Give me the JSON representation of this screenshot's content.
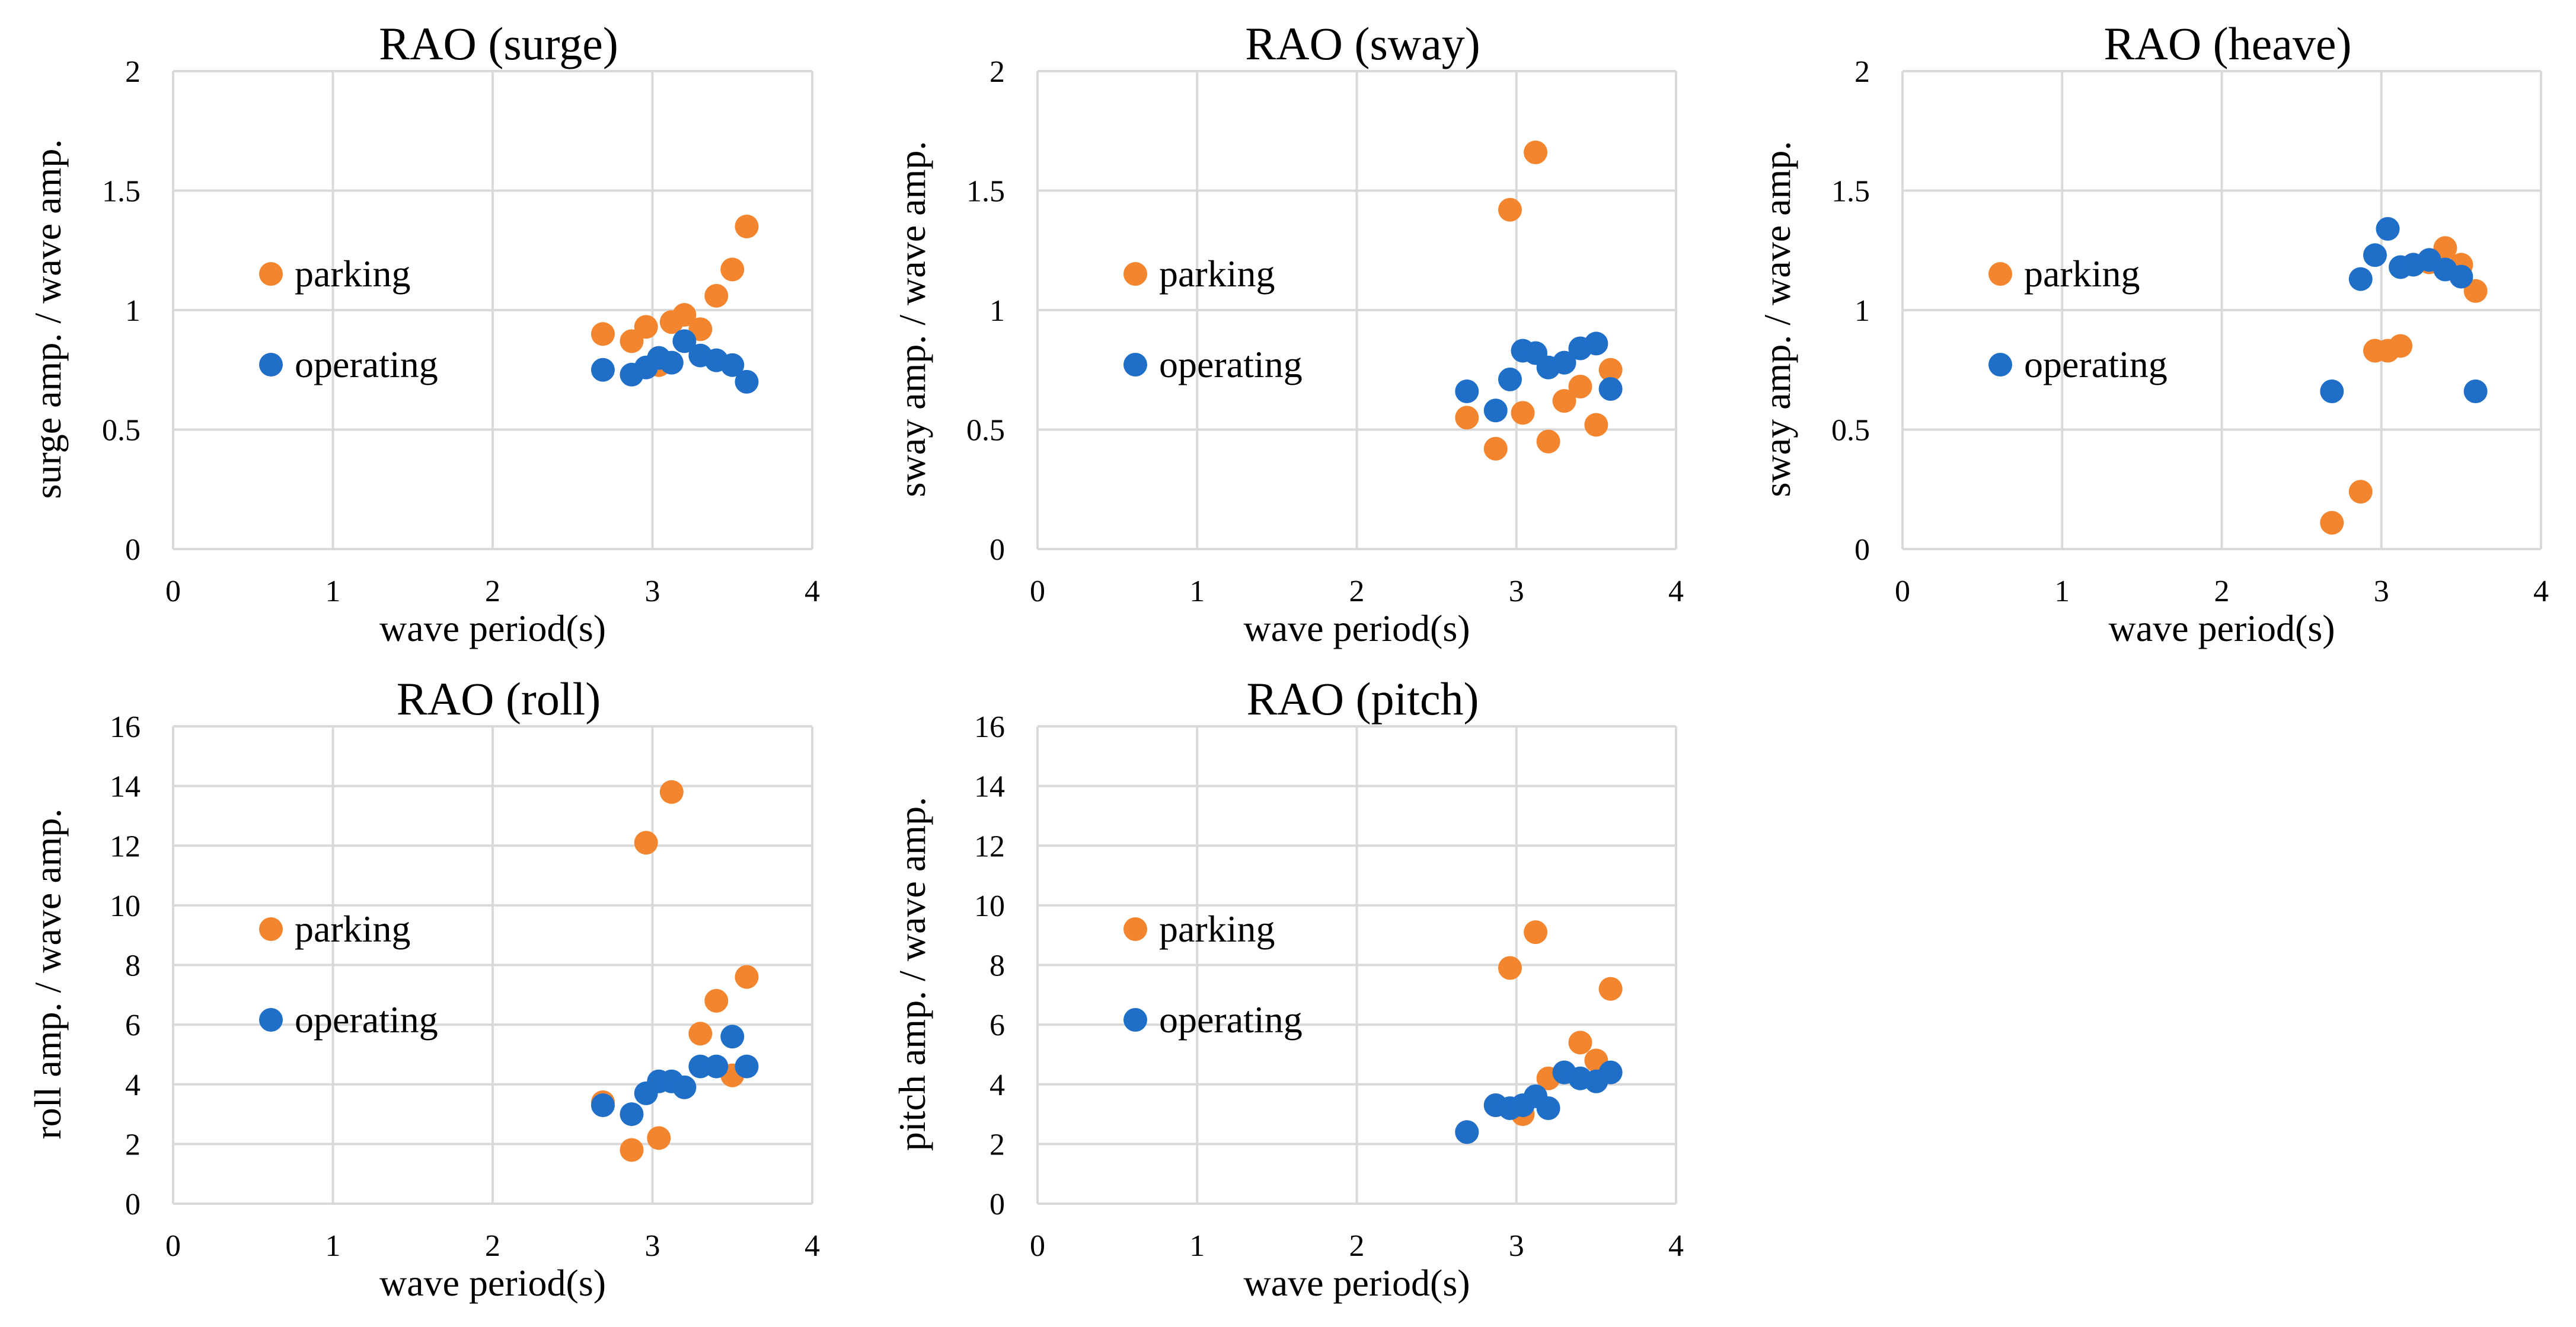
{
  "colors": {
    "parking": "#f4852f",
    "operating": "#1f6fc9",
    "grid": "#d9d9d9"
  },
  "chart_data": [
    {
      "type": "scatter",
      "title": "RAO (surge)",
      "xlabel": "wave period(s)",
      "ylabel": "surge amp. / wave amp.",
      "xlim": [
        0,
        4
      ],
      "ylim": [
        0,
        2
      ],
      "xticks": [
        "0",
        "1",
        "2",
        "3",
        "4"
      ],
      "yticks": [
        "0",
        "0.5",
        "1",
        "1.5",
        "2"
      ],
      "legend_position": "middle-left",
      "series": [
        {
          "name": "parking",
          "color": "#f4852f",
          "x": [
            2.69,
            2.87,
            2.96,
            3.04,
            3.12,
            3.2,
            3.3,
            3.4,
            3.5,
            3.59
          ],
          "y": [
            0.9,
            0.87,
            0.93,
            0.77,
            0.95,
            0.98,
            0.92,
            1.06,
            1.17,
            1.35
          ]
        },
        {
          "name": "operating",
          "color": "#1f6fc9",
          "x": [
            2.69,
            2.87,
            2.96,
            3.04,
            3.12,
            3.2,
            3.3,
            3.4,
            3.5,
            3.59
          ],
          "y": [
            0.75,
            0.73,
            0.76,
            0.8,
            0.78,
            0.87,
            0.81,
            0.79,
            0.77,
            0.7
          ]
        }
      ]
    },
    {
      "type": "scatter",
      "title": "RAO (sway)",
      "xlabel": "wave period(s)",
      "ylabel": "sway amp. / wave amp.",
      "xlim": [
        0,
        4
      ],
      "ylim": [
        0,
        2
      ],
      "xticks": [
        "0",
        "1",
        "2",
        "3",
        "4"
      ],
      "yticks": [
        "0",
        "0.5",
        "1",
        "1.5",
        "2"
      ],
      "legend_position": "middle-left",
      "series": [
        {
          "name": "parking",
          "color": "#f4852f",
          "x": [
            2.69,
            2.87,
            2.96,
            3.04,
            3.12,
            3.2,
            3.3,
            3.4,
            3.5,
            3.59
          ],
          "y": [
            0.55,
            0.42,
            1.42,
            0.57,
            1.66,
            0.45,
            0.62,
            0.68,
            0.52,
            0.75
          ]
        },
        {
          "name": "operating",
          "color": "#1f6fc9",
          "x": [
            2.69,
            2.87,
            2.96,
            3.04,
            3.12,
            3.2,
            3.3,
            3.4,
            3.5,
            3.59
          ],
          "y": [
            0.66,
            0.58,
            0.71,
            0.83,
            0.82,
            0.76,
            0.78,
            0.84,
            0.86,
            0.67
          ]
        }
      ]
    },
    {
      "type": "scatter",
      "title": "RAO (heave)",
      "xlabel": "wave period(s)",
      "ylabel": "sway amp. / wave amp.",
      "xlim": [
        0,
        4
      ],
      "ylim": [
        0,
        2
      ],
      "xticks": [
        "0",
        "1",
        "2",
        "3",
        "4"
      ],
      "yticks": [
        "0",
        "0.5",
        "1",
        "1.5",
        "2"
      ],
      "legend_position": "middle-left",
      "series": [
        {
          "name": "parking",
          "color": "#f4852f",
          "x": [
            2.69,
            2.87,
            2.96,
            3.04,
            3.12,
            3.2,
            3.3,
            3.4,
            3.5,
            3.59
          ],
          "y": [
            0.11,
            0.24,
            0.83,
            0.83,
            0.85,
            1.19,
            1.2,
            1.26,
            1.19,
            1.08
          ]
        },
        {
          "name": "operating",
          "color": "#1f6fc9",
          "x": [
            2.69,
            2.87,
            2.96,
            3.04,
            3.12,
            3.2,
            3.3,
            3.4,
            3.5,
            3.59
          ],
          "y": [
            0.66,
            1.13,
            1.23,
            1.34,
            1.18,
            1.19,
            1.21,
            1.17,
            1.14,
            0.66
          ]
        }
      ]
    },
    {
      "type": "scatter",
      "title": "RAO (roll)",
      "xlabel": "wave period(s)",
      "ylabel": "roll amp. / wave amp.",
      "xlim": [
        0,
        4
      ],
      "ylim": [
        0,
        16
      ],
      "xticks": [
        "0",
        "1",
        "2",
        "3",
        "4"
      ],
      "yticks": [
        "0",
        "2",
        "4",
        "6",
        "8",
        "10",
        "12",
        "14",
        "16"
      ],
      "legend_position": "middle-left",
      "series": [
        {
          "name": "parking",
          "color": "#f4852f",
          "x": [
            2.69,
            2.87,
            2.96,
            3.04,
            3.12,
            3.2,
            3.3,
            3.4,
            3.5,
            3.59
          ],
          "y": [
            3.4,
            1.8,
            12.1,
            2.2,
            13.8,
            3.9,
            5.7,
            6.8,
            4.3,
            7.6
          ]
        },
        {
          "name": "operating",
          "color": "#1f6fc9",
          "x": [
            2.69,
            2.87,
            2.96,
            3.04,
            3.12,
            3.2,
            3.3,
            3.4,
            3.5,
            3.59
          ],
          "y": [
            3.3,
            3.0,
            3.7,
            4.1,
            4.1,
            3.9,
            4.6,
            4.6,
            5.6,
            4.6
          ]
        }
      ]
    },
    {
      "type": "scatter",
      "title": "RAO (pitch)",
      "xlabel": "wave period(s)",
      "ylabel": "pitch amp. / wave amp.",
      "xlim": [
        0,
        4
      ],
      "ylim": [
        0,
        16
      ],
      "xticks": [
        "0",
        "1",
        "2",
        "3",
        "4"
      ],
      "yticks": [
        "0",
        "2",
        "4",
        "6",
        "8",
        "10",
        "12",
        "14",
        "16"
      ],
      "legend_position": "middle-left",
      "series": [
        {
          "name": "parking",
          "color": "#f4852f",
          "x": [
            2.69,
            2.87,
            2.96,
            3.04,
            3.12,
            3.2,
            3.3,
            3.4,
            3.5,
            3.59
          ],
          "y": [
            2.4,
            3.3,
            7.9,
            3.0,
            9.1,
            4.2,
            4.4,
            5.4,
            4.8,
            7.2
          ]
        },
        {
          "name": "operating",
          "color": "#1f6fc9",
          "x": [
            2.69,
            2.87,
            2.96,
            3.04,
            3.12,
            3.2,
            3.3,
            3.4,
            3.5,
            3.59
          ],
          "y": [
            2.4,
            3.3,
            3.2,
            3.3,
            3.6,
            3.2,
            4.4,
            4.2,
            4.1,
            4.4
          ]
        }
      ]
    }
  ]
}
